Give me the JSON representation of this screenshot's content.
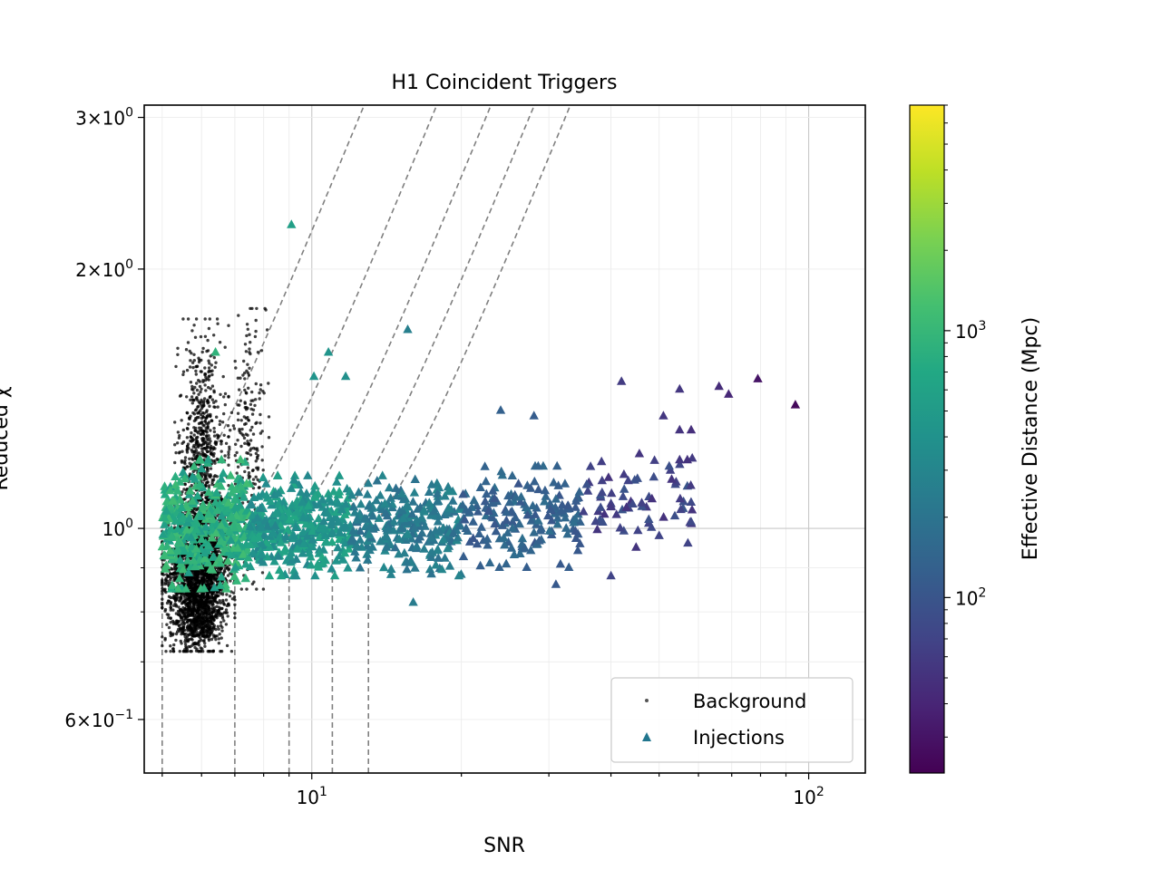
{
  "chart_data": {
    "type": "scatter",
    "title": "H1 Coincident Triggers",
    "xlabel": "SNR",
    "ylabel": "Reduced χ",
    "xscale": "log",
    "yscale": "log",
    "xlim": [
      4.6,
      130
    ],
    "ylim": [
      0.52,
      3.1
    ],
    "grid": true,
    "legend_position": "lower-right",
    "x_ticks": [
      {
        "value": 10,
        "base": "10",
        "exp": "1"
      },
      {
        "value": 100,
        "base": "10",
        "exp": "2"
      }
    ],
    "y_ticks": [
      {
        "value": 0.6,
        "mant": "6",
        "base": "10",
        "exp": "−1"
      },
      {
        "value": 1,
        "mant": "",
        "base": "10",
        "exp": "0"
      },
      {
        "value": 2,
        "mant": "2",
        "base": "10",
        "exp": "0"
      },
      {
        "value": 3,
        "mant": "3",
        "base": "10",
        "exp": "0"
      }
    ],
    "legend": [
      {
        "label": "Background",
        "marker": "dot",
        "color": "#555555"
      },
      {
        "label": "Injections",
        "marker": "triangle",
        "color": "#21768e"
      }
    ],
    "colorbar": {
      "label": "Effective Distance (Mpc)",
      "scale": "log",
      "range": [
        22,
        7000
      ],
      "colormap": "viridis",
      "ticks": [
        {
          "value": 100,
          "base": "10",
          "exp": "2"
        },
        {
          "value": 1000,
          "base": "10",
          "exp": "3"
        }
      ]
    },
    "contours": [
      {
        "snr_at_chi1": 5.0
      },
      {
        "snr_at_chi1": 7.0
      },
      {
        "snr_at_chi1": 9.0
      },
      {
        "snr_at_chi1": 11.0
      },
      {
        "snr_at_chi1": 13.0
      }
    ],
    "series": [
      {
        "name": "Background",
        "marker": "dot",
        "color": "#000000",
        "clusters": [
          {
            "x_range": [
              5.0,
              7.0
            ],
            "y_range": [
              0.72,
              1.08
            ],
            "count": 1800
          },
          {
            "x_range": [
              5.3,
              6.8
            ],
            "y_range": [
              0.75,
              1.75
            ],
            "count": 900
          },
          {
            "x_range": [
              6.8,
              8.2
            ],
            "y_range": [
              0.85,
              1.8
            ],
            "count": 220
          },
          {
            "x_range": [
              5.2,
              6.6
            ],
            "y_range": [
              0.72,
              0.85
            ],
            "count": 300
          }
        ]
      },
      {
        "name": "Injections",
        "marker": "triangle",
        "clusters": [
          {
            "x_range": [
              5.0,
              7.5
            ],
            "y_range": [
              0.85,
              1.2
            ],
            "count": 400,
            "distance_range": [
              500,
              1200
            ]
          },
          {
            "x_range": [
              7.5,
              12
            ],
            "y_range": [
              0.88,
              1.15
            ],
            "count": 380,
            "distance_range": [
              300,
              700
            ]
          },
          {
            "x_range": [
              12,
              20
            ],
            "y_range": [
              0.88,
              1.15
            ],
            "count": 260,
            "distance_range": [
              170,
              320
            ]
          },
          {
            "x_range": [
              20,
              35
            ],
            "y_range": [
              0.9,
              1.18
            ],
            "count": 170,
            "distance_range": [
              100,
              180
            ]
          },
          {
            "x_range": [
              35,
              60
            ],
            "y_range": [
              0.95,
              1.22
            ],
            "count": 70,
            "distance_range": [
              50,
              100
            ]
          }
        ],
        "points": [
          {
            "x": 9.1,
            "y": 2.25,
            "d": 560
          },
          {
            "x": 15.6,
            "y": 1.7,
            "d": 260
          },
          {
            "x": 10.8,
            "y": 1.6,
            "d": 420
          },
          {
            "x": 10.1,
            "y": 1.5,
            "d": 420
          },
          {
            "x": 11.7,
            "y": 1.5,
            "d": 380
          },
          {
            "x": 6.4,
            "y": 1.6,
            "d": 900
          },
          {
            "x": 42,
            "y": 1.48,
            "d": 60
          },
          {
            "x": 55,
            "y": 1.45,
            "d": 55
          },
          {
            "x": 66,
            "y": 1.46,
            "d": 45
          },
          {
            "x": 69,
            "y": 1.43,
            "d": 42
          },
          {
            "x": 79,
            "y": 1.49,
            "d": 30
          },
          {
            "x": 94,
            "y": 1.39,
            "d": 25
          },
          {
            "x": 51,
            "y": 1.35,
            "d": 55
          },
          {
            "x": 58,
            "y": 1.3,
            "d": 48
          },
          {
            "x": 28,
            "y": 1.35,
            "d": 120
          },
          {
            "x": 24,
            "y": 1.37,
            "d": 130
          },
          {
            "x": 55,
            "y": 1.3,
            "d": 52
          },
          {
            "x": 55,
            "y": 1.2,
            "d": 55
          },
          {
            "x": 57,
            "y": 1.2,
            "d": 50
          },
          {
            "x": 50,
            "y": 0.98,
            "d": 70
          },
          {
            "x": 16,
            "y": 0.82,
            "d": 240
          },
          {
            "x": 40,
            "y": 0.88,
            "d": 70
          },
          {
            "x": 31,
            "y": 0.86,
            "d": 110
          }
        ]
      }
    ]
  }
}
